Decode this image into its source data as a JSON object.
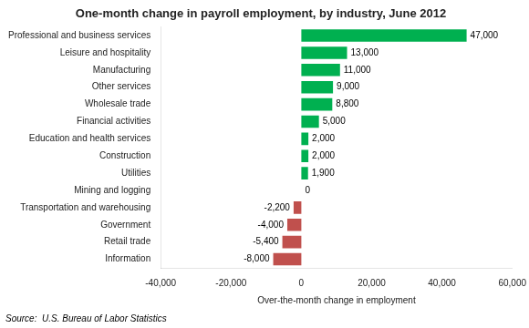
{
  "chart_data": {
    "type": "bar",
    "orientation": "horizontal",
    "title": "One-month change in payroll employment, by industry, June 2012",
    "xlabel": "Over-the-month change in employment",
    "annotations": [
      "Source:  U.S. Bureau of Labor Statistics"
    ],
    "categories": [
      "Information",
      "Retail trade",
      "Government",
      "Transportation and warehousing",
      "Mining and logging",
      "Utilities",
      "Construction",
      "Education and health services",
      "Financial activities",
      "Wholesale trade",
      "Other services",
      "Manufacturing",
      "Leisure and hospitality",
      "Professional and business services"
    ],
    "values": [
      -8000,
      -5400,
      -4000,
      -2200,
      0,
      1900,
      2000,
      2000,
      5000,
      8800,
      9000,
      11000,
      13000,
      47000
    ],
    "value_labels": [
      "-8,000",
      "-5,400",
      "-4,000",
      "-2,200",
      "0",
      "1,900",
      "2,000",
      "2,000",
      "5,000",
      "8,800",
      "9,000",
      "11,000",
      "13,000",
      "47,000"
    ],
    "data_labels": true,
    "colors": [
      "#c0504d",
      "#c0504d",
      "#c0504d",
      "#c0504d",
      "#00b050",
      "#00b050",
      "#00b050",
      "#00b050",
      "#00b050",
      "#00b050",
      "#00b050",
      "#00b050",
      "#00b050",
      "#00b050"
    ],
    "xlim": [
      -40000,
      60000
    ],
    "xticks": [
      {
        "value": -40000,
        "label": "-40,000"
      },
      {
        "value": -20000,
        "label": "-20,000"
      },
      0,
      {
        "value": 20000,
        "label": "20,000"
      },
      {
        "value": 40000,
        "label": "40,000"
      },
      {
        "value": 60000,
        "label": "60,000"
      }
    ],
    "grid": false
  }
}
